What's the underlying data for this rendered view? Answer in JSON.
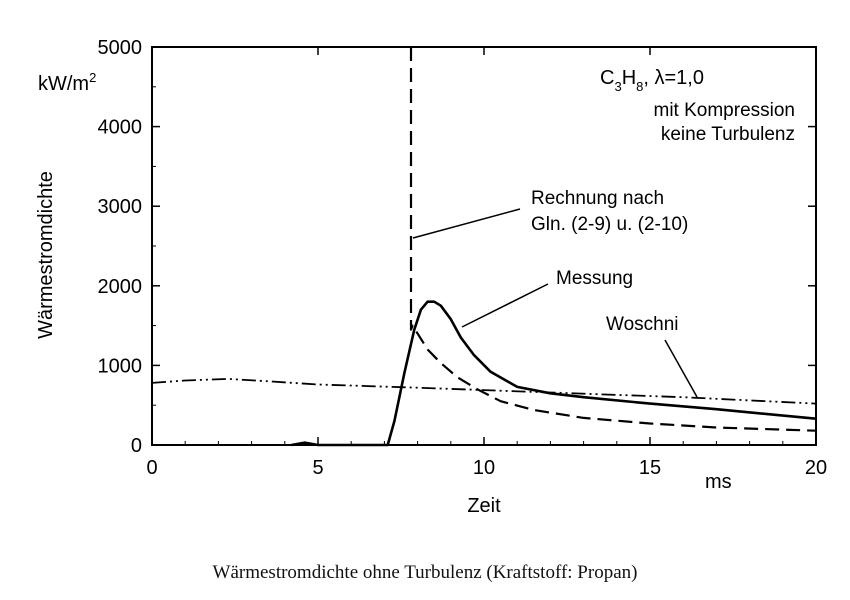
{
  "chart_data": {
    "type": "line",
    "ylabel": "Wärmestromdichte",
    "yunit": "kW/m²",
    "xlabel": "Zeit",
    "xunit": "ms",
    "xlim": [
      0,
      20
    ],
    "ylim": [
      0,
      5000
    ],
    "xticks": [
      "0",
      "5",
      "10",
      "15",
      "20"
    ],
    "yticks": [
      "0",
      "1000",
      "2000",
      "3000",
      "4000",
      "5000"
    ],
    "legend_box": {
      "line1": "C₃H₈,  λ=1,0",
      "line2": "mit Kompression",
      "line3": "keine Turbulenz"
    },
    "annotations": {
      "rechnung_line1": "Rechnung nach",
      "rechnung_line2": "Gln. (2-9) u. (2-10)",
      "messung": "Messung",
      "woschni": "Woschni"
    },
    "series": [
      {
        "name": "Messung",
        "style": "solid",
        "x": [
          4.2,
          4.6,
          5.0,
          7.1,
          7.3,
          7.6,
          7.9,
          8.1,
          8.3,
          8.5,
          8.7,
          9.0,
          9.3,
          9.7,
          10.2,
          11.0,
          12.0,
          13.0,
          15.0,
          17.0,
          20.0
        ],
        "y": [
          0,
          30,
          0,
          0,
          300,
          900,
          1450,
          1700,
          1800,
          1800,
          1750,
          1580,
          1350,
          1130,
          920,
          730,
          650,
          600,
          520,
          450,
          330
        ]
      },
      {
        "name": "Rechnung nach Gln. (2-9) u. (2-10)",
        "style": "dashed",
        "x": [
          7.8,
          7.8,
          7.85,
          8.0,
          8.3,
          8.7,
          9.2,
          9.8,
          10.5,
          11.5,
          13.0,
          15.0,
          17.0,
          20.0
        ],
        "y": [
          5000,
          1450,
          1500,
          1400,
          1200,
          1030,
          850,
          700,
          550,
          440,
          340,
          270,
          220,
          180
        ]
      },
      {
        "name": "Woschni",
        "style": "dash-dot-dot",
        "x": [
          0,
          1.0,
          2.3,
          3.5,
          5.0,
          6.5,
          8.0,
          10.0,
          12.0,
          14.0,
          16.0,
          18.0,
          20.0
        ],
        "y": [
          780,
          810,
          830,
          800,
          760,
          740,
          720,
          690,
          660,
          630,
          600,
          560,
          520
        ]
      }
    ]
  },
  "caption": "Wärmestromdichte ohne Turbulenz (Kraftstoff: Propan)"
}
